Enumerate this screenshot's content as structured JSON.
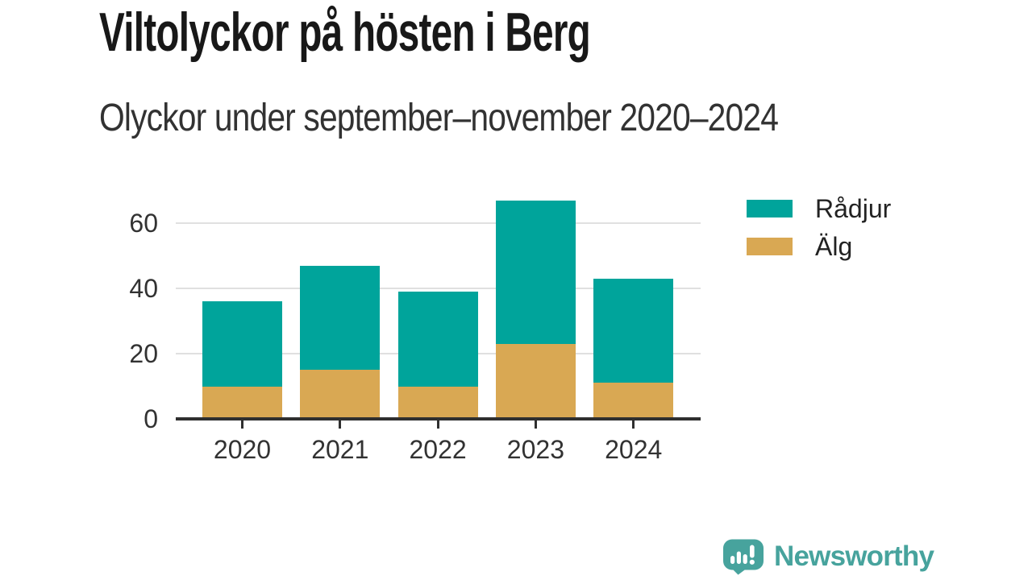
{
  "header": {
    "title": "Viltolyckor på hösten i Berg",
    "subtitle": "Olyckor under september–november 2020–2024"
  },
  "colors": {
    "radjur_teal": "#00a49b",
    "alg_gold": "#d9a853",
    "title_text": "#181818",
    "body_text": "#323232",
    "gridline": "#e0e0e0",
    "axis": "#2f2f2f",
    "brand_teal": "#47a39d",
    "background": "#ffffff"
  },
  "chart_data": {
    "type": "bar",
    "stacked": true,
    "title": "Viltolyckor på hösten i Berg",
    "subtitle": "Olyckor under september–november 2020–2024",
    "xlabel": "",
    "ylabel": "",
    "categories": [
      "2020",
      "2021",
      "2022",
      "2023",
      "2024"
    ],
    "series": [
      {
        "name": "Rådjur",
        "color": "#00a49b",
        "stack": "top",
        "values": [
          26,
          32,
          29,
          44,
          32
        ]
      },
      {
        "name": "Älg",
        "color": "#d9a853",
        "stack": "bottom",
        "values": [
          10,
          15,
          10,
          23,
          11
        ]
      }
    ],
    "stack_totals": [
      36,
      47,
      39,
      67,
      43
    ],
    "y_ticks": [
      0,
      20,
      40,
      60
    ],
    "ylim": [
      0,
      70
    ],
    "grid": "horizontal",
    "legend_position": "right"
  },
  "legend": {
    "items": [
      {
        "label": "Rådjur"
      },
      {
        "label": "Älg"
      }
    ]
  },
  "footer": {
    "brand": "Newsworthy"
  }
}
